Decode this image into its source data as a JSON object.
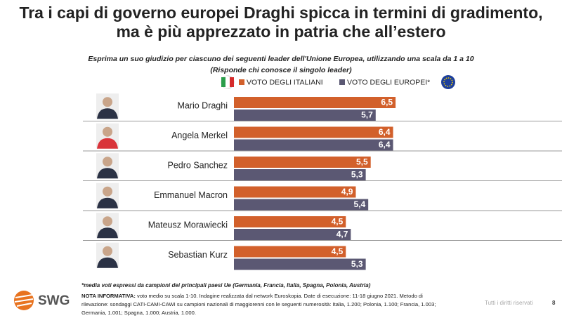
{
  "chart_data": {
    "type": "grouped-hbar",
    "title": [
      "Tra i capi di governo europei Draghi spicca in termini di gradimento,",
      "ma è più apprezzato in patria che all’estero"
    ],
    "subtitle": [
      "Esprima un suo giudizio per ciascuno dei seguenti leader dell'Unione Europea, utilizzando una scala da 1 a 10",
      "(Risponde chi conosce il singolo leader)"
    ],
    "categories": [
      "Mario Draghi",
      "Angela Merkel",
      "Pedro Sanchez",
      "Emmanuel Macron",
      "Mateusz Morawiecki",
      "Sebastian Kurz"
    ],
    "series": [
      {
        "name": "VOTO DEGLI ITALIANI",
        "color": "#d2602b",
        "values": [
          6.5,
          6.4,
          5.5,
          4.9,
          4.5,
          4.5
        ],
        "value_labels": [
          "6,5",
          "6,4",
          "5,5",
          "4,9",
          "4,5",
          "4,5"
        ]
      },
      {
        "name": "VOTO DEGLI EUROPEI*",
        "color": "#5b5873",
        "values": [
          5.7,
          6.4,
          5.3,
          5.4,
          4.7,
          5.3
        ],
        "value_labels": [
          "5,7",
          "6,4",
          "5,3",
          "5,4",
          "4,7",
          "5,3"
        ]
      }
    ],
    "footnote": "*media voti espressi da campioni dei principali paesi Ue (Germania, Francia, Italia, Spagna, Polonia, Austria)",
    "note_label": "NOTA INFORMATIVA:",
    "note_lines": [
      " voto medio su scala 1-10. Indagine realizzata dal network Euroskopia. Date di esecuzione: 11-18 giugno 2021. Metodo di",
      "rilevazione: sondaggi CATI-CAMI-CAWI su campioni nazionali di maggiorenni con le seguenti numerosità: Italia, 1.200; Polonia, 1.100; Francia, 1.003;",
      "Germania, 1.001; Spagna, 1.000; Austria, 1.000."
    ],
    "brand": "SWG",
    "rights": "Tutti i diritti riservati",
    "page_number": "8"
  }
}
